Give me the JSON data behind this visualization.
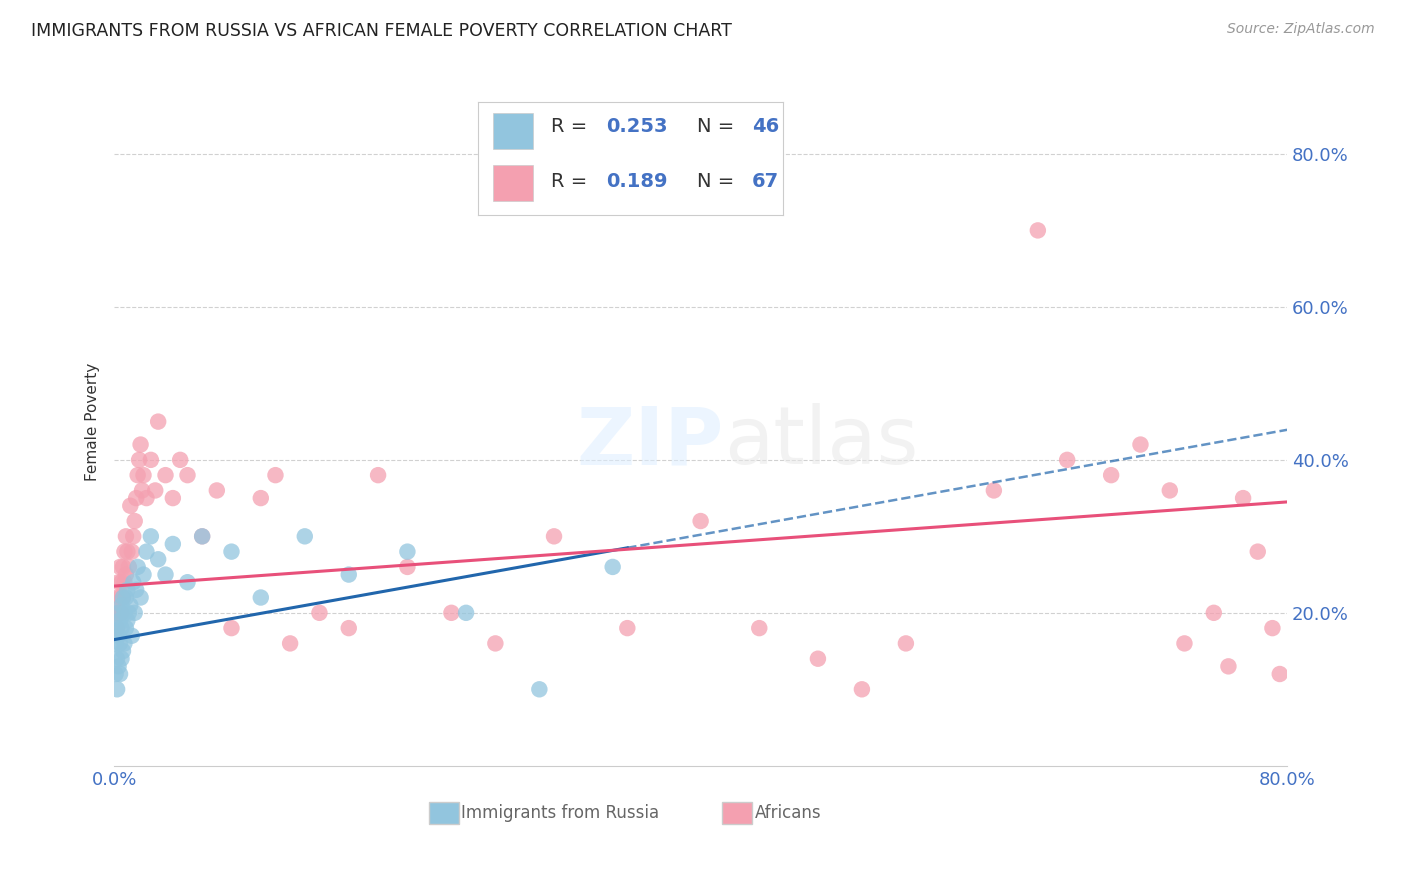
{
  "title": "IMMIGRANTS FROM RUSSIA VS AFRICAN FEMALE POVERTY CORRELATION CHART",
  "source": "Source: ZipAtlas.com",
  "ylabel": "Female Poverty",
  "watermark_zip": "ZIP",
  "watermark_atlas": "atlas",
  "legend_russia_r": "R = 0.253",
  "legend_russia_n": "N = 46",
  "legend_africa_r": "R = 0.189",
  "legend_africa_n": "N = 67",
  "russia_color": "#92C5DE",
  "africa_color": "#F4A0B0",
  "russia_line_color": "#2166AC",
  "africa_line_color": "#E8507A",
  "tick_label_color": "#4472C4",
  "background_color": "#FFFFFF",
  "grid_color": "#CCCCCC",
  "xlim": [
    0.0,
    0.8
  ],
  "ylim": [
    0.0,
    0.9
  ],
  "russia_scatter_x": [
    0.001,
    0.001,
    0.002,
    0.002,
    0.002,
    0.003,
    0.003,
    0.003,
    0.004,
    0.004,
    0.004,
    0.005,
    0.005,
    0.005,
    0.006,
    0.006,
    0.007,
    0.007,
    0.008,
    0.008,
    0.009,
    0.009,
    0.01,
    0.011,
    0.012,
    0.013,
    0.014,
    0.015,
    0.016,
    0.018,
    0.02,
    0.022,
    0.025,
    0.03,
    0.035,
    0.04,
    0.05,
    0.06,
    0.08,
    0.1,
    0.13,
    0.16,
    0.2,
    0.24,
    0.29,
    0.34
  ],
  "russia_scatter_y": [
    0.12,
    0.16,
    0.1,
    0.14,
    0.18,
    0.13,
    0.17,
    0.2,
    0.12,
    0.16,
    0.19,
    0.14,
    0.18,
    0.21,
    0.15,
    0.22,
    0.16,
    0.2,
    0.18,
    0.22,
    0.19,
    0.23,
    0.2,
    0.21,
    0.17,
    0.24,
    0.2,
    0.23,
    0.26,
    0.22,
    0.25,
    0.28,
    0.3,
    0.27,
    0.25,
    0.29,
    0.24,
    0.3,
    0.28,
    0.22,
    0.3,
    0.25,
    0.28,
    0.2,
    0.1,
    0.26
  ],
  "africa_scatter_x": [
    0.001,
    0.002,
    0.002,
    0.003,
    0.003,
    0.004,
    0.004,
    0.005,
    0.005,
    0.006,
    0.006,
    0.007,
    0.007,
    0.008,
    0.008,
    0.009,
    0.01,
    0.011,
    0.012,
    0.013,
    0.014,
    0.015,
    0.016,
    0.017,
    0.018,
    0.019,
    0.02,
    0.022,
    0.025,
    0.028,
    0.03,
    0.035,
    0.04,
    0.045,
    0.05,
    0.06,
    0.07,
    0.08,
    0.1,
    0.11,
    0.12,
    0.14,
    0.16,
    0.18,
    0.2,
    0.23,
    0.26,
    0.3,
    0.35,
    0.4,
    0.44,
    0.48,
    0.51,
    0.54,
    0.6,
    0.63,
    0.65,
    0.68,
    0.7,
    0.72,
    0.73,
    0.75,
    0.76,
    0.77,
    0.78,
    0.79,
    0.795
  ],
  "africa_scatter_y": [
    0.2,
    0.22,
    0.18,
    0.24,
    0.2,
    0.22,
    0.26,
    0.2,
    0.24,
    0.22,
    0.26,
    0.28,
    0.24,
    0.3,
    0.25,
    0.28,
    0.26,
    0.34,
    0.28,
    0.3,
    0.32,
    0.35,
    0.38,
    0.4,
    0.42,
    0.36,
    0.38,
    0.35,
    0.4,
    0.36,
    0.45,
    0.38,
    0.35,
    0.4,
    0.38,
    0.3,
    0.36,
    0.18,
    0.35,
    0.38,
    0.16,
    0.2,
    0.18,
    0.38,
    0.26,
    0.2,
    0.16,
    0.3,
    0.18,
    0.32,
    0.18,
    0.14,
    0.1,
    0.16,
    0.36,
    0.7,
    0.4,
    0.38,
    0.42,
    0.36,
    0.16,
    0.2,
    0.13,
    0.35,
    0.28,
    0.18,
    0.12
  ],
  "russia_trend_x": [
    0.0,
    0.35
  ],
  "russia_trend_y": [
    0.165,
    0.285
  ],
  "africa_trend_x": [
    0.0,
    0.8
  ],
  "africa_trend_y": [
    0.235,
    0.345
  ],
  "ytick_positions": [
    0.2,
    0.4,
    0.6,
    0.8
  ],
  "ytick_labels": [
    "20.0%",
    "40.0%",
    "60.0%",
    "80.0%"
  ],
  "xtick_positions": [
    0.0,
    0.8
  ],
  "xtick_labels": [
    "0.0%",
    "80.0%"
  ]
}
